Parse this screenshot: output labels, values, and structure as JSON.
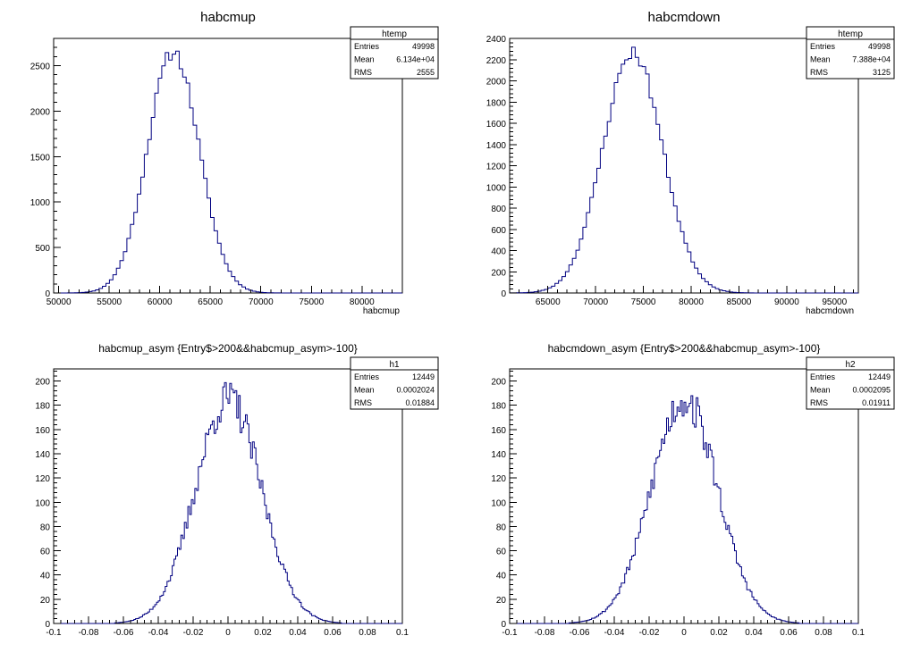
{
  "chart_data": [
    {
      "type": "histogram",
      "title": "habcmup",
      "xlabel": "habcmup",
      "ylabel": "",
      "xlim": [
        49500,
        84000
      ],
      "ylim": [
        0,
        2800
      ],
      "xticks": [
        50000,
        55000,
        60000,
        65000,
        70000,
        75000,
        80000
      ],
      "xtick_labels": [
        "50000",
        "55000",
        "60000",
        "65000",
        "70000",
        "75000",
        "80000"
      ],
      "yticks": [
        0,
        500,
        1000,
        1500,
        2000,
        2500
      ],
      "ytick_labels": [
        "0",
        "500",
        "1000",
        "1500",
        "2000",
        "2500"
      ],
      "distribution": {
        "mean": 61340,
        "rms": 2555,
        "entries": 49998,
        "bins": 100,
        "peak": 2650,
        "seed": 11,
        "noise": 0.03
      },
      "stats": {
        "name": "htemp",
        "rows": [
          {
            "label": "Entries",
            "value": "49998"
          },
          {
            "label": "Mean",
            "value": "6.134e+04"
          },
          {
            "label": "RMS",
            "value": "2555"
          }
        ]
      }
    },
    {
      "type": "histogram",
      "title": "habcmdown",
      "xlabel": "habcmdown",
      "ylabel": "",
      "xlim": [
        61000,
        97500
      ],
      "ylim": [
        0,
        2400
      ],
      "xticks": [
        65000,
        70000,
        75000,
        80000,
        85000,
        90000,
        95000
      ],
      "xtick_labels": [
        "65000",
        "70000",
        "75000",
        "80000",
        "85000",
        "90000",
        "95000"
      ],
      "yticks": [
        0,
        200,
        400,
        600,
        800,
        1000,
        1200,
        1400,
        1600,
        1800,
        2000,
        2200,
        2400
      ],
      "ytick_labels": [
        "0",
        "200",
        "400",
        "600",
        "800",
        "1000",
        "1200",
        "1400",
        "1600",
        "1800",
        "2000",
        "2200",
        "2400"
      ],
      "distribution": {
        "mean": 73880,
        "rms": 3125,
        "entries": 49998,
        "bins": 100,
        "peak": 2270,
        "seed": 23,
        "noise": 0.03
      },
      "stats": {
        "name": "htemp",
        "rows": [
          {
            "label": "Entries",
            "value": "49998"
          },
          {
            "label": "Mean",
            "value": "7.388e+04"
          },
          {
            "label": "RMS",
            "value": "3125"
          }
        ]
      }
    },
    {
      "type": "histogram",
      "title": "habcmup_asym {Entry$>200&&habcmup_asym>-100}",
      "xlabel": "",
      "ylabel": "",
      "xlim": [
        -0.1,
        0.1
      ],
      "ylim": [
        0,
        210
      ],
      "xticks": [
        -0.1,
        -0.08,
        -0.06,
        -0.04,
        -0.02,
        0,
        0.02,
        0.04,
        0.06,
        0.08,
        0.1
      ],
      "xtick_labels": [
        "-0.1",
        "-0.08",
        "-0.06",
        "-0.04",
        "-0.02",
        "0",
        "0.02",
        "0.04",
        "0.06",
        "0.08",
        "0.1"
      ],
      "yticks": [
        0,
        20,
        40,
        60,
        80,
        100,
        120,
        140,
        160,
        180,
        200
      ],
      "ytick_labels": [
        "0",
        "20",
        "40",
        "60",
        "80",
        "100",
        "120",
        "140",
        "160",
        "180",
        "200"
      ],
      "distribution": {
        "mean": 0.0002024,
        "rms": 0.01884,
        "entries": 12449,
        "bins": 200,
        "peak": 185,
        "seed": 37,
        "noise": 0.09
      },
      "stats": {
        "name": "h1",
        "rows": [
          {
            "label": "Entries",
            "value": "12449"
          },
          {
            "label": "Mean",
            "value": "0.0002024"
          },
          {
            "label": "RMS",
            "value": "0.01884"
          }
        ]
      }
    },
    {
      "type": "histogram",
      "title": "habcmdown_asym {Entry$>200&&habcmup_asym>-100}",
      "xlabel": "",
      "ylabel": "",
      "xlim": [
        -0.1,
        0.1
      ],
      "ylim": [
        0,
        210
      ],
      "xticks": [
        -0.1,
        -0.08,
        -0.06,
        -0.04,
        -0.02,
        0,
        0.02,
        0.04,
        0.06,
        0.08,
        0.1
      ],
      "xtick_labels": [
        "-0.1",
        "-0.08",
        "-0.06",
        "-0.04",
        "-0.02",
        "0",
        "0.02",
        "0.04",
        "0.06",
        "0.08",
        "0.1"
      ],
      "yticks": [
        0,
        20,
        40,
        60,
        80,
        100,
        120,
        140,
        160,
        180,
        200
      ],
      "ytick_labels": [
        "0",
        "20",
        "40",
        "60",
        "80",
        "100",
        "120",
        "140",
        "160",
        "180",
        "200"
      ],
      "distribution": {
        "mean": 0.0002095,
        "rms": 0.01911,
        "entries": 12449,
        "bins": 200,
        "peak": 185,
        "seed": 53,
        "noise": 0.09
      },
      "stats": {
        "name": "h2",
        "rows": [
          {
            "label": "Entries",
            "value": "12449"
          },
          {
            "label": "Mean",
            "value": "0.0002095"
          },
          {
            "label": "RMS",
            "value": "0.01911"
          }
        ]
      }
    }
  ],
  "colors": {
    "histogram_line": "#000080",
    "axes": "#000000",
    "background": "#ffffff"
  }
}
